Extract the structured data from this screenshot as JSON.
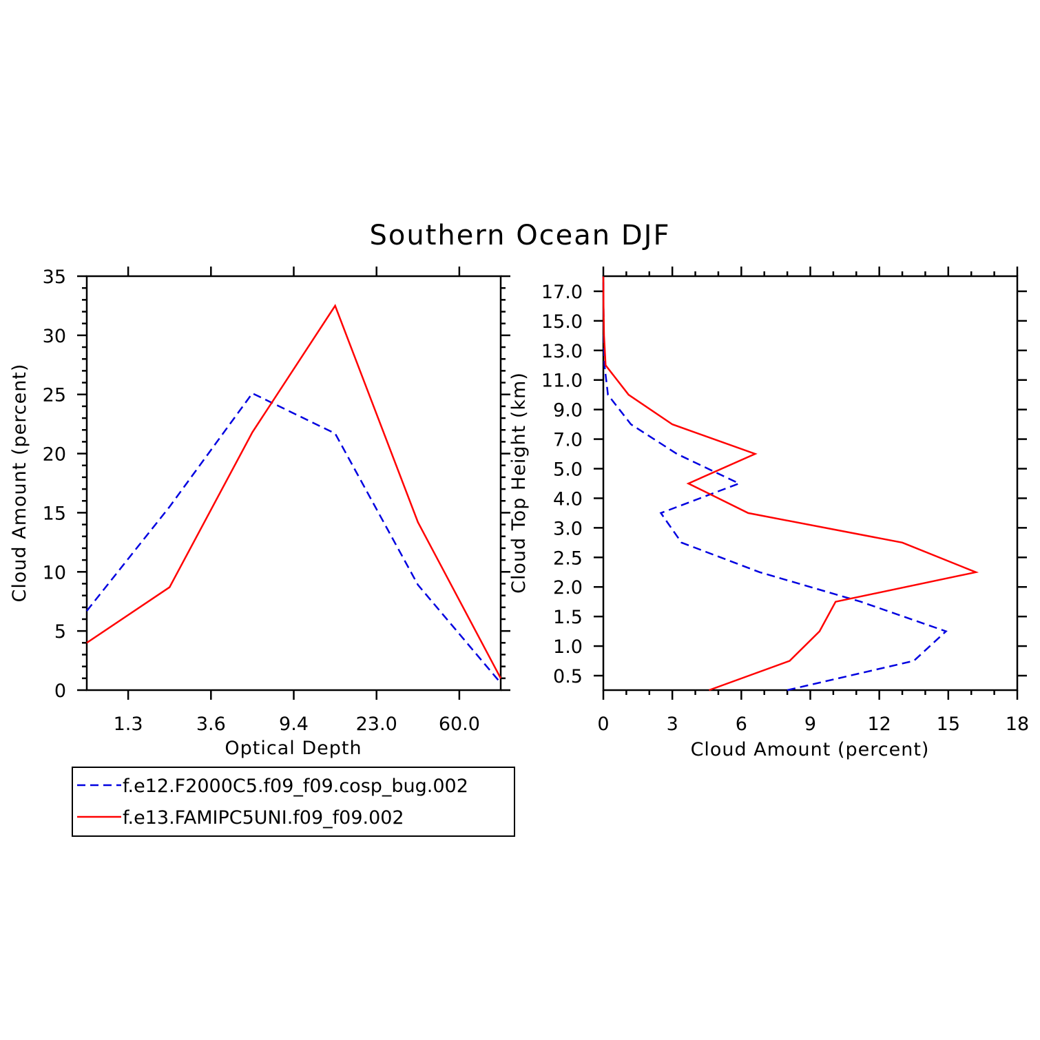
{
  "title": "Southern Ocean DJF",
  "chart_data": [
    {
      "type": "line",
      "xlabel": "Optical Depth",
      "ylabel": "Cloud Amount (percent)",
      "ylim": [
        0,
        35
      ],
      "y_major_ticks": [
        0,
        5,
        10,
        15,
        20,
        25,
        30,
        35
      ],
      "x_ticks": [
        {
          "pos": 1,
          "label": "1.3"
        },
        {
          "pos": 2,
          "label": "3.6"
        },
        {
          "pos": 3,
          "label": "9.4"
        },
        {
          "pos": 4,
          "label": "23.0"
        },
        {
          "pos": 5,
          "label": "60.0"
        }
      ],
      "xlim": [
        0.5,
        5.5
      ],
      "series": [
        {
          "name": "f.e12.F2000C5.f09_f09.cosp_bug.002",
          "color": "#0000e0",
          "dash": true,
          "x": [
            0.5,
            1.5,
            2.5,
            3.5,
            4.5,
            5.5
          ],
          "values": [
            6.7,
            15.5,
            25.1,
            21.7,
            8.9,
            0.6
          ]
        },
        {
          "name": "f.e13.FAMIPC5UNI.f09_f09.002",
          "color": "#ff0000",
          "dash": false,
          "x": [
            0.5,
            1.5,
            2.5,
            3.5,
            4.5,
            5.5
          ],
          "values": [
            4.0,
            8.7,
            21.8,
            32.5,
            14.2,
            1.0
          ]
        }
      ]
    },
    {
      "type": "line",
      "xlabel": "Cloud Amount (percent)",
      "ylabel": "Cloud Top Height (km)",
      "xlim": [
        0,
        18
      ],
      "x_major_ticks": [
        0,
        3,
        6,
        9,
        12,
        15,
        18
      ],
      "y_ticks": [
        "0.5",
        "1.0",
        "1.5",
        "2.0",
        "2.5",
        "3.0",
        "4.0",
        "5.0",
        "7.0",
        "9.0",
        "11.0",
        "13.0",
        "15.0",
        "17.0"
      ],
      "series": [
        {
          "name": "f.e12.F2000C5.f09_f09.cosp_bug.002",
          "color": "#0000e0",
          "dash": true,
          "y_index": [
            -0.5,
            0.5,
            1.5,
            2.5,
            3.5,
            4.5,
            5.5,
            6.5,
            7.5,
            8.5,
            9.5,
            10.5,
            11.5,
            12.5,
            13.5
          ],
          "values": [
            8.0,
            13.5,
            14.9,
            11.2,
            6.8,
            3.4,
            2.5,
            5.9,
            3.2,
            1.2,
            0.2,
            0.05,
            0.02,
            0.01,
            0.0
          ]
        },
        {
          "name": "f.e13.FAMIPC5UNI.f09_f09.002",
          "color": "#ff0000",
          "dash": false,
          "y_index": [
            -0.5,
            0.5,
            1.5,
            2.5,
            3.5,
            4.5,
            5.5,
            6.5,
            7.5,
            8.5,
            9.5,
            10.5,
            11.5,
            12.5,
            13.5
          ],
          "values": [
            4.6,
            8.1,
            9.4,
            10.1,
            16.2,
            13.0,
            6.3,
            3.7,
            6.6,
            3.0,
            1.1,
            0.1,
            0.03,
            0.01,
            0.0
          ]
        }
      ]
    }
  ]
}
